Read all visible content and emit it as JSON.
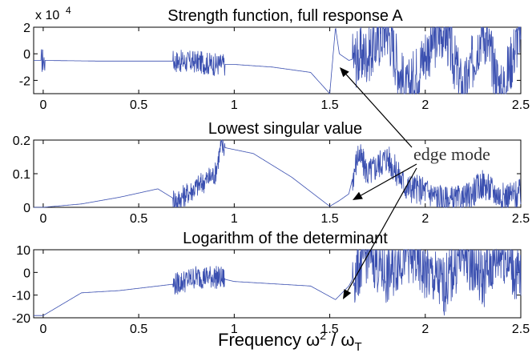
{
  "xlabel": {
    "main": "Frequency ω",
    "sup": "2",
    "mid": " / ω",
    "sub": "T"
  },
  "annotation": "edge mode",
  "chart_data": [
    {
      "type": "line",
      "title": "Strength function, full response A",
      "multiplier": "x 10",
      "multiplier_exp": "4",
      "xlim": [
        -0.05,
        2.5
      ],
      "ylim": [
        -3,
        2
      ],
      "xticks": [
        0,
        0.5,
        1,
        1.5,
        2,
        2.5
      ],
      "yticks": [
        2,
        0,
        -2
      ],
      "series": [
        {
          "x": [
            0,
            0.3,
            0.6,
            0.7,
            0.75,
            0.8,
            0.85,
            0.9,
            1.0,
            1.2,
            1.4,
            1.5,
            1.53,
            1.55,
            1.6,
            1.7,
            1.8,
            1.9,
            2.0,
            2.1,
            2.2,
            2.3,
            2.4,
            2.5
          ],
          "y": [
            -0.5,
            -0.55,
            -0.55,
            -0.55,
            -0.6,
            -0.6,
            -0.7,
            -0.8,
            -0.8,
            -1.0,
            -1.4,
            -3,
            2,
            0,
            -0.5,
            0,
            2,
            -3,
            0,
            2,
            -3,
            2,
            -3,
            2
          ]
        }
      ]
    },
    {
      "type": "line",
      "title": "Lowest singular value",
      "xlim": [
        -0.05,
        2.5
      ],
      "ylim": [
        0,
        0.2
      ],
      "xticks": [
        0,
        0.5,
        1,
        1.5,
        2,
        2.5
      ],
      "yticks": [
        0.2,
        0.1,
        0
      ],
      "series": [
        {
          "x": [
            0,
            0.2,
            0.4,
            0.6,
            0.7,
            0.8,
            0.9,
            0.93,
            1.1,
            1.3,
            1.5,
            1.55,
            1.6,
            1.65,
            1.7,
            1.8,
            1.9,
            2.0,
            2.1,
            2.2,
            2.3,
            2.4,
            2.5
          ],
          "y": [
            0,
            0.01,
            0.03,
            0.055,
            0.02,
            0.06,
            0.1,
            0.18,
            0.16,
            0.09,
            0.003,
            0.02,
            0.04,
            0.16,
            0.1,
            0.15,
            0.06,
            0.05,
            0.02,
            0.02,
            0.07,
            0.03,
            0.04
          ]
        }
      ]
    },
    {
      "type": "line",
      "title": "Logarithm of the determinant",
      "xlim": [
        -0.05,
        2.5
      ],
      "ylim": [
        -20,
        10
      ],
      "xticks": [
        0,
        0.5,
        1,
        1.5,
        2,
        2.5
      ],
      "yticks": [
        10,
        0,
        -10,
        -20
      ],
      "series": [
        {
          "x": [
            0,
            0.2,
            0.4,
            0.6,
            0.7,
            0.8,
            0.9,
            1.0,
            1.2,
            1.4,
            1.53,
            1.6,
            1.7,
            1.8,
            1.9,
            2.0,
            2.1,
            2.2,
            2.3,
            2.4,
            2.5
          ],
          "y": [
            -19,
            -9,
            -8,
            -6,
            -5,
            -2,
            -2,
            -4,
            -5,
            -6,
            -12,
            -6,
            10,
            -2,
            10,
            0,
            -6,
            10,
            -3,
            10,
            -4
          ]
        }
      ]
    }
  ]
}
